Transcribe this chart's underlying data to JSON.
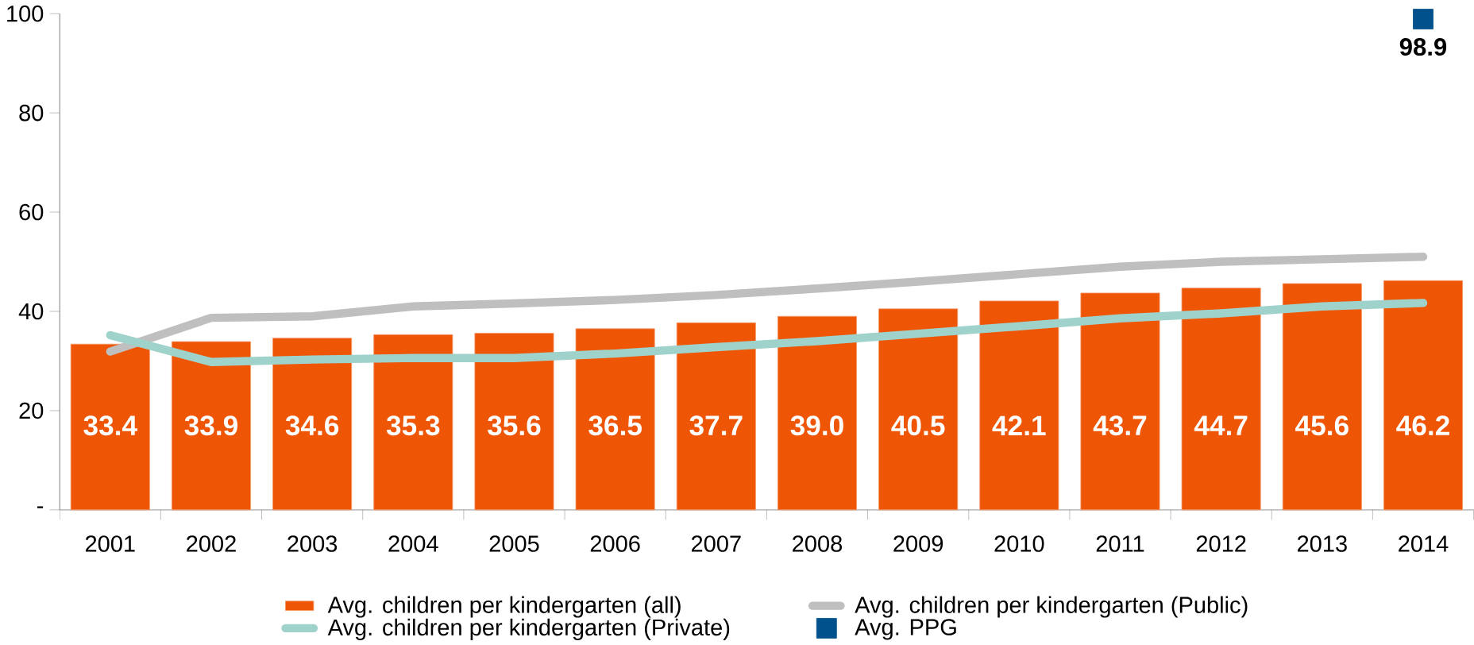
{
  "chart_data": {
    "type": "bar",
    "categories": [
      "2001",
      "2002",
      "2003",
      "2004",
      "2005",
      "2006",
      "2007",
      "2008",
      "2009",
      "2010",
      "2011",
      "2012",
      "2013",
      "2014"
    ],
    "series": [
      {
        "name": "Avg. children per kindergarten (all)",
        "color": "#ee5505",
        "values": [
          33.4,
          33.9,
          34.6,
          35.3,
          35.6,
          36.5,
          37.7,
          39.0,
          40.5,
          42.1,
          43.7,
          44.7,
          45.6,
          46.2
        ],
        "value_labels": [
          "33.4",
          "33.9",
          "34.6",
          "35.3",
          "35.6",
          "36.5",
          "37.7",
          "39.0",
          "40.5",
          "42.1",
          "43.7",
          "44.7",
          "45.6",
          "46.2"
        ]
      },
      {
        "name": "Avg. children per kindergarten (Public)",
        "type": "line",
        "color": "#bfbfbf",
        "values": [
          31.9,
          38.7,
          39.0,
          41.0,
          41.6,
          42.3,
          43.3,
          44.6,
          46.0,
          47.5,
          49.0,
          50.0,
          50.5,
          51.0
        ]
      },
      {
        "name": "Avg. children per kindergarten (Private)",
        "type": "line",
        "color": "#9fd2cb",
        "values": [
          35.2,
          29.8,
          30.3,
          30.6,
          30.6,
          31.5,
          32.8,
          34.0,
          35.5,
          37.0,
          38.6,
          39.6,
          41.0,
          41.7
        ]
      },
      {
        "name": "Avg. PPG",
        "type": "scatter",
        "color": "#00518c",
        "marker": "square",
        "values": [
          null,
          null,
          null,
          null,
          null,
          null,
          null,
          null,
          null,
          null,
          null,
          null,
          null,
          98.9
        ],
        "value_labels": [
          null,
          null,
          null,
          null,
          null,
          null,
          null,
          null,
          null,
          null,
          null,
          null,
          null,
          "98.9"
        ]
      }
    ],
    "ylim": [
      0,
      100
    ],
    "yticks": [
      {
        "value": 0,
        "label": "-"
      },
      20,
      40,
      60,
      80,
      100
    ],
    "grid": false,
    "legend": "bottom"
  }
}
